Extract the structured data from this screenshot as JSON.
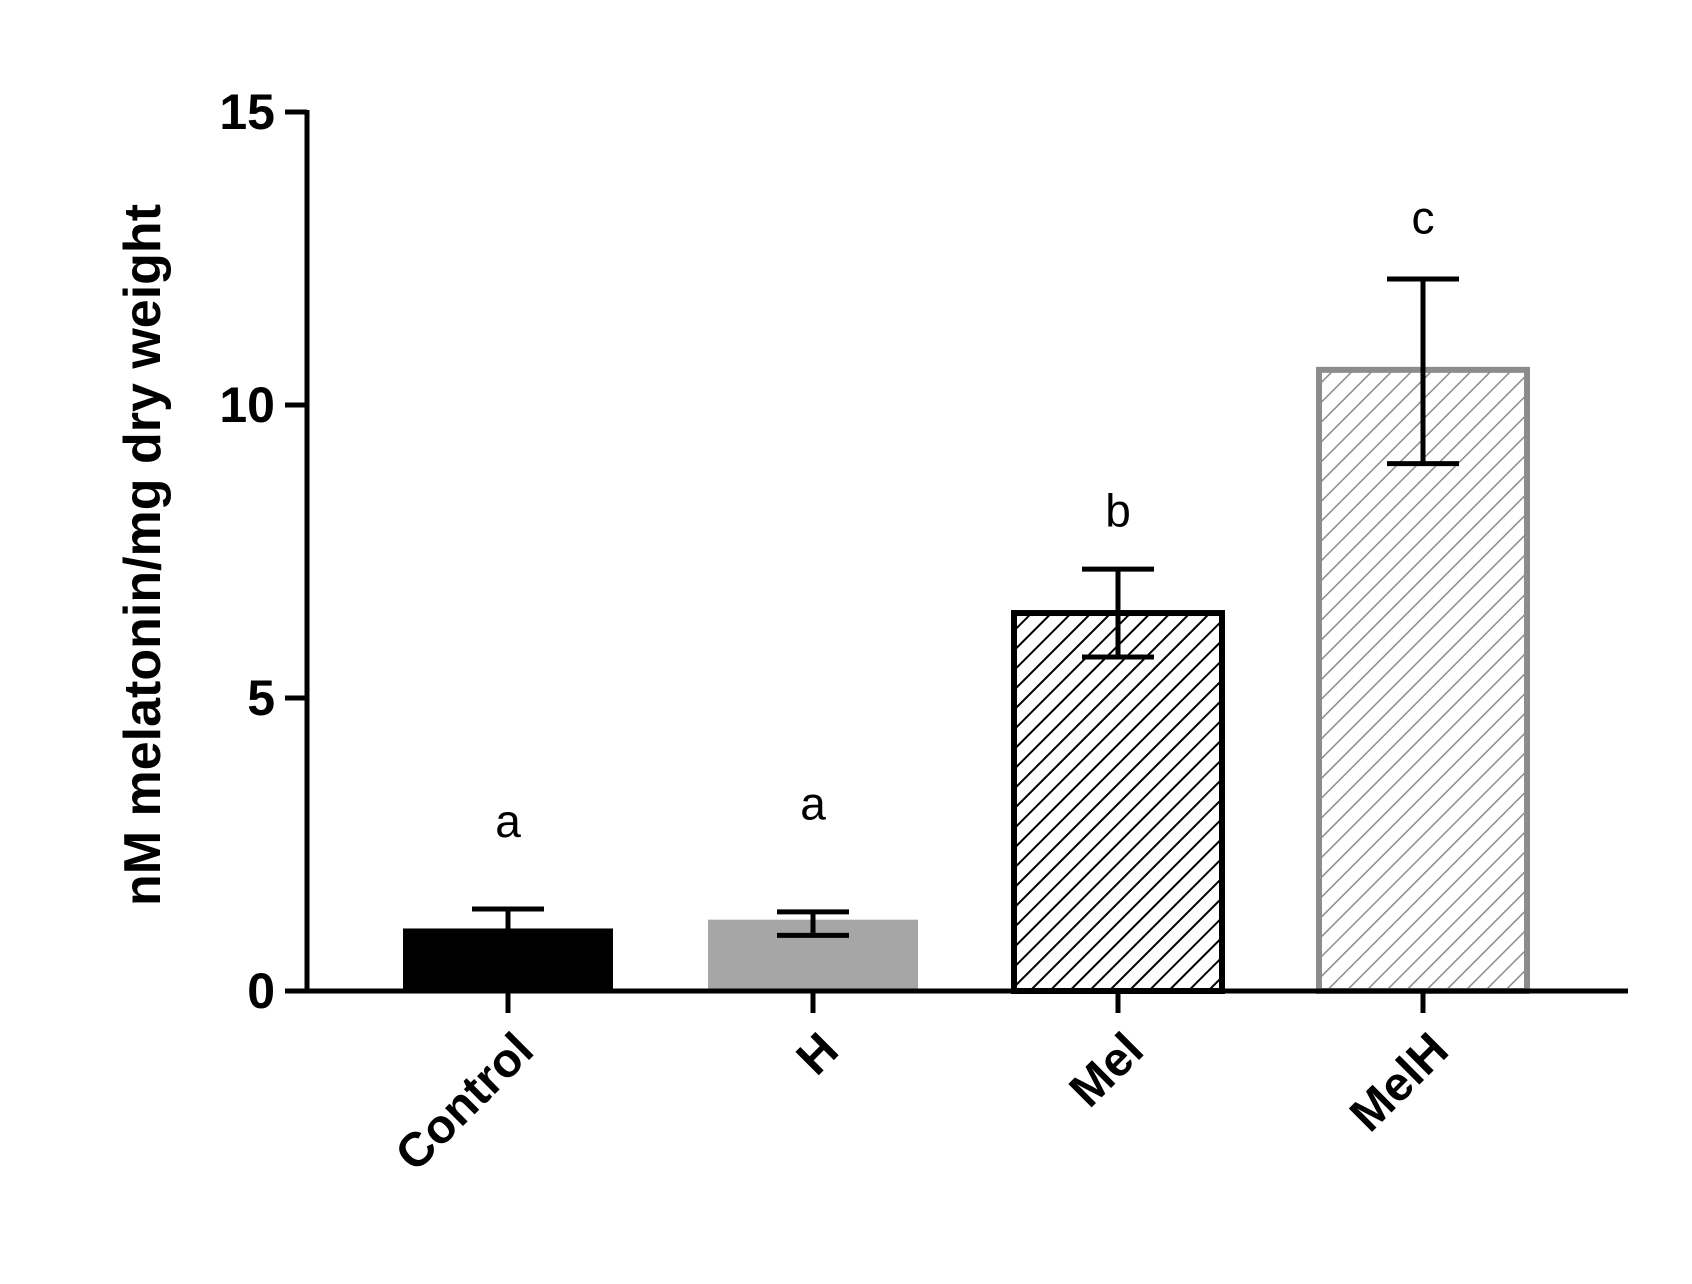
{
  "chart_data": {
    "type": "bar",
    "title": "",
    "xlabel": "",
    "ylabel": "nM melatonin/mg dry weight",
    "ylim": [
      0,
      15
    ],
    "yticks": [
      "0",
      "5",
      "10",
      "15"
    ],
    "categories": [
      "Control",
      "H",
      "Mel",
      "MelH"
    ],
    "values": [
      1.05,
      1.2,
      6.45,
      10.6
    ],
    "errors_upper": [
      1.4,
      1.35,
      7.2,
      12.15
    ],
    "errors_lower": [
      0.7,
      0.95,
      5.7,
      9.0
    ],
    "significance_letters": [
      "a",
      "a",
      "b",
      "c"
    ],
    "grid": false,
    "legend": "none",
    "bar_styles": [
      {
        "fill": "solid",
        "color": "#000000"
      },
      {
        "fill": "solid",
        "color": "#a6a6a6"
      },
      {
        "fill": "hatch",
        "color": "#000000"
      },
      {
        "fill": "hatch",
        "color": "#8c8c8c"
      }
    ]
  }
}
